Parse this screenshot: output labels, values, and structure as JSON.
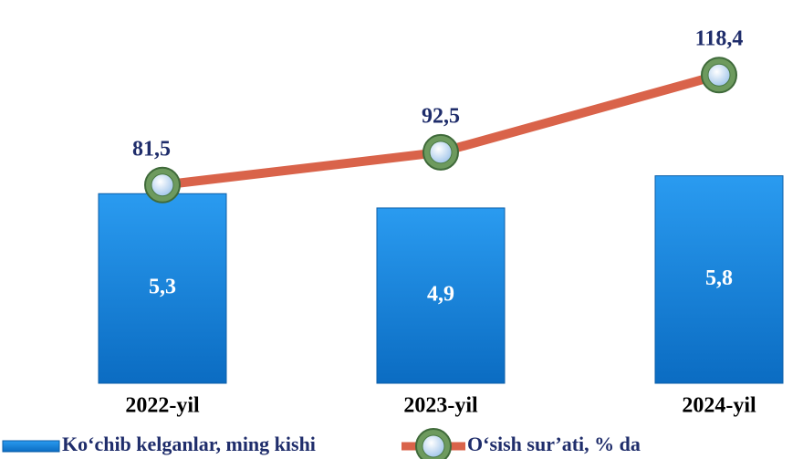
{
  "chart_data": {
    "type": "bar",
    "categories": [
      "2022-yil",
      "2023-yil",
      "2024-yil"
    ],
    "series": [
      {
        "name": "Ko‘chib kelganlar, ming kishi",
        "type": "bar",
        "color": "#1784d8",
        "values": [
          5.3,
          4.9,
          5.8
        ],
        "value_labels": [
          "5,3",
          "4,9",
          "5,8"
        ]
      },
      {
        "name": "O‘sish sur’ati, % da",
        "type": "line",
        "axis": "y2",
        "color": "#d9634a",
        "values": [
          81.5,
          92.5,
          118.4
        ],
        "value_labels": [
          "81,5",
          "92,5",
          "118,4"
        ]
      }
    ],
    "ylim": [
      0,
      10
    ],
    "y2lim": [
      15,
      135
    ],
    "legend": "bottom"
  }
}
